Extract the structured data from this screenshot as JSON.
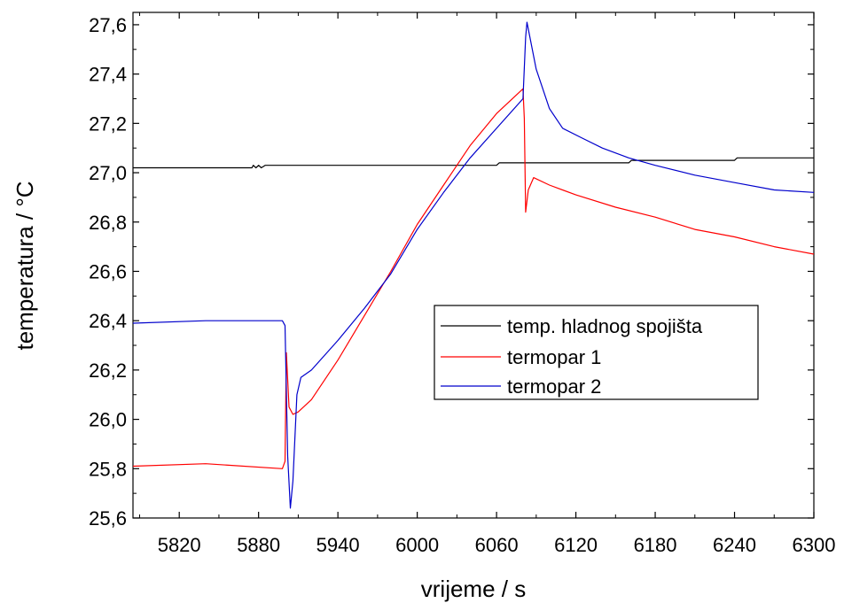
{
  "chart_data": {
    "type": "line",
    "xlabel": "vrijeme / s",
    "ylabel": "temperatura / °C",
    "xlim": [
      5785,
      6300
    ],
    "ylim": [
      25.6,
      27.65
    ],
    "x_ticks": [
      5820,
      5880,
      5940,
      6000,
      6060,
      6120,
      6180,
      6240,
      6300
    ],
    "y_ticks": [
      25.6,
      25.8,
      26.0,
      26.2,
      26.4,
      26.6,
      26.8,
      27.0,
      27.2,
      27.4,
      27.6
    ],
    "y_tick_labels": [
      "25,6",
      "25,8",
      "26,0",
      "26,2",
      "26,4",
      "26,6",
      "26,8",
      "27,0",
      "27,2",
      "27,4",
      "27,6"
    ],
    "grid": false,
    "legend_position": "center-right",
    "series": [
      {
        "name": "temp. hladnog spojišta",
        "color": "#000000",
        "points": [
          [
            5785,
            27.02
          ],
          [
            5875,
            27.02
          ],
          [
            5876,
            27.03
          ],
          [
            5878,
            27.02
          ],
          [
            5880,
            27.03
          ],
          [
            5882,
            27.02
          ],
          [
            5885,
            27.03
          ],
          [
            6060,
            27.03
          ],
          [
            6062,
            27.04
          ],
          [
            6160,
            27.04
          ],
          [
            6162,
            27.05
          ],
          [
            6240,
            27.05
          ],
          [
            6242,
            27.06
          ],
          [
            6300,
            27.06
          ]
        ]
      },
      {
        "name": "termopar 1",
        "color": "#ff0000",
        "points": [
          [
            5785,
            25.81
          ],
          [
            5840,
            25.82
          ],
          [
            5898,
            25.8
          ],
          [
            5900,
            25.83
          ],
          [
            5901,
            26.27
          ],
          [
            5903,
            26.05
          ],
          [
            5906,
            26.02
          ],
          [
            5910,
            26.03
          ],
          [
            5920,
            26.08
          ],
          [
            5940,
            26.24
          ],
          [
            5960,
            26.42
          ],
          [
            5980,
            26.6
          ],
          [
            6000,
            26.79
          ],
          [
            6020,
            26.95
          ],
          [
            6040,
            27.11
          ],
          [
            6060,
            27.24
          ],
          [
            6080,
            27.34
          ],
          [
            6081,
            27.22
          ],
          [
            6082,
            26.84
          ],
          [
            6084,
            26.93
          ],
          [
            6088,
            26.98
          ],
          [
            6100,
            26.95
          ],
          [
            6120,
            26.91
          ],
          [
            6150,
            26.86
          ],
          [
            6180,
            26.82
          ],
          [
            6210,
            26.77
          ],
          [
            6240,
            26.74
          ],
          [
            6270,
            26.7
          ],
          [
            6300,
            26.67
          ]
        ]
      },
      {
        "name": "termopar 2",
        "color": "#0000cc",
        "points": [
          [
            5785,
            26.39
          ],
          [
            5840,
            26.4
          ],
          [
            5898,
            26.4
          ],
          [
            5900,
            26.38
          ],
          [
            5902,
            25.85
          ],
          [
            5904,
            25.64
          ],
          [
            5906,
            25.75
          ],
          [
            5909,
            26.1
          ],
          [
            5912,
            26.17
          ],
          [
            5920,
            26.2
          ],
          [
            5940,
            26.32
          ],
          [
            5960,
            26.45
          ],
          [
            5980,
            26.59
          ],
          [
            6000,
            26.77
          ],
          [
            6020,
            26.92
          ],
          [
            6040,
            27.06
          ],
          [
            6060,
            27.18
          ],
          [
            6080,
            27.3
          ],
          [
            6082,
            27.55
          ],
          [
            6083,
            27.61
          ],
          [
            6090,
            27.42
          ],
          [
            6100,
            27.26
          ],
          [
            6110,
            27.18
          ],
          [
            6125,
            27.14
          ],
          [
            6140,
            27.1
          ],
          [
            6160,
            27.06
          ],
          [
            6180,
            27.03
          ],
          [
            6210,
            26.99
          ],
          [
            6240,
            26.96
          ],
          [
            6270,
            26.93
          ],
          [
            6300,
            26.92
          ]
        ]
      }
    ]
  }
}
